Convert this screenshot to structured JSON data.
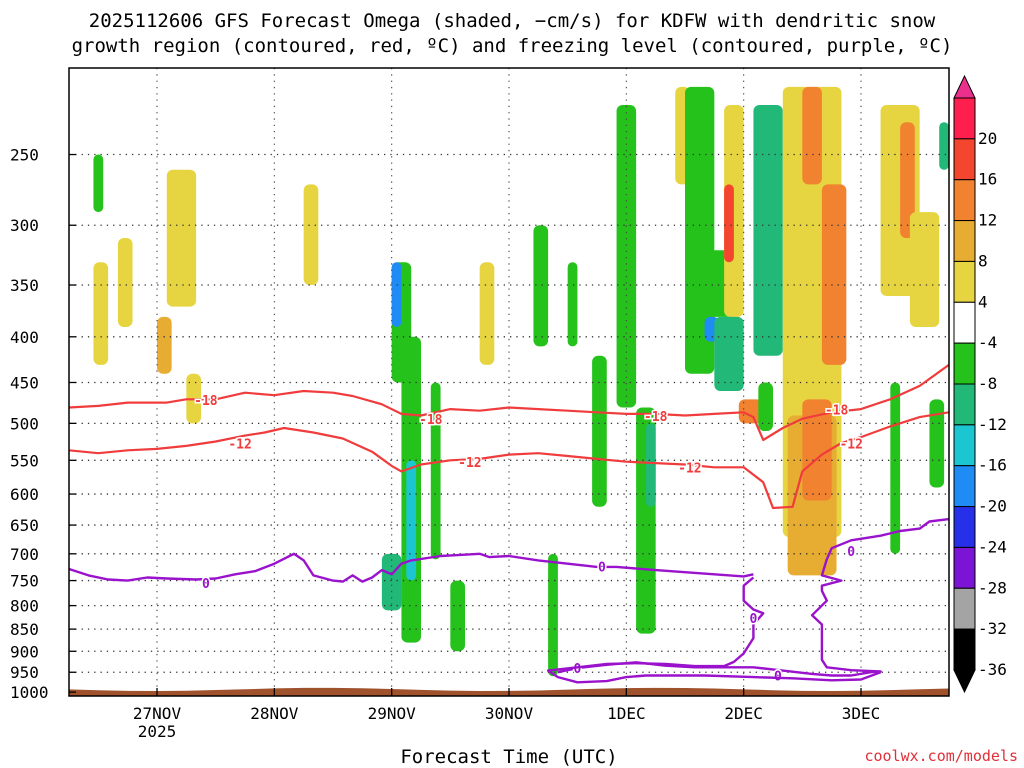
{
  "chart_data": {
    "type": "heatmap",
    "title_lines": [
      "2025112606 GFS Forecast Omega (shaded, −cm/s) for KDFW with dendritic snow",
      "growth region (contoured, red, ºC) and freezing level (contoured, purple, ºC)"
    ],
    "xlabel": "Forecast Time (UTC)",
    "ylabel": "",
    "x_ticks": [
      "27NOV",
      "28NOV",
      "29NOV",
      "30NOV",
      "1DEC",
      "2DEC",
      "3DEC"
    ],
    "x_tick_hours": [
      18,
      42,
      66,
      90,
      114,
      138,
      162
    ],
    "x_year_label": "2025",
    "xlim_hours": [
      0,
      180
    ],
    "y_ticks": [
      250,
      300,
      350,
      400,
      450,
      500,
      550,
      600,
      650,
      700,
      750,
      800,
      850,
      900,
      950,
      1000
    ],
    "ylim": [
      200,
      1010
    ],
    "grid": true,
    "colorbar": {
      "labels": [
        "20",
        "16",
        "12",
        "8",
        "4",
        "-4",
        "-8",
        "-12",
        "-16",
        "-20",
        "-24",
        "-28",
        "-32",
        "-36"
      ],
      "colors": [
        "#ff1f4e",
        "#f4462e",
        "#f08230",
        "#e7ad32",
        "#e6d540",
        "#ffffff",
        "#25c21c",
        "#21b878",
        "#1cc6d0",
        "#1f8cf6",
        "#2530e8",
        "#7b14d4",
        "#a4a4a4",
        "#000000"
      ],
      "top_arrow_color": "#ea2f8c",
      "bottom_arrow_color": "#000000"
    },
    "omega_patches": [
      {
        "h": 5,
        "p": 330,
        "w": 3,
        "dp": 100,
        "c": 4
      },
      {
        "h": 10,
        "p": 310,
        "w": 3,
        "dp": 80,
        "c": 4
      },
      {
        "h": 20,
        "p": 260,
        "w": 6,
        "dp": 110,
        "c": 4
      },
      {
        "h": 18,
        "p": 380,
        "w": 3,
        "dp": 60,
        "c": 3
      },
      {
        "h": 24,
        "p": 440,
        "w": 3,
        "dp": 60,
        "c": 4
      },
      {
        "h": 5,
        "p": 250,
        "w": 2,
        "dp": 40,
        "c": 6
      },
      {
        "h": 48,
        "p": 270,
        "w": 3,
        "dp": 80,
        "c": 4
      },
      {
        "h": 66,
        "p": 330,
        "w": 4,
        "dp": 120,
        "c": 6
      },
      {
        "h": 66,
        "p": 330,
        "w": 2,
        "dp": 60,
        "c": 9
      },
      {
        "h": 68,
        "p": 400,
        "w": 4,
        "dp": 480,
        "c": 6
      },
      {
        "h": 69,
        "p": 550,
        "w": 2,
        "dp": 200,
        "c": 8
      },
      {
        "h": 64,
        "p": 700,
        "w": 4,
        "dp": 110,
        "c": 7
      },
      {
        "h": 74,
        "p": 450,
        "w": 2,
        "dp": 260,
        "c": 6
      },
      {
        "h": 78,
        "p": 750,
        "w": 3,
        "dp": 150,
        "c": 6
      },
      {
        "h": 84,
        "p": 330,
        "w": 3,
        "dp": 100,
        "c": 4
      },
      {
        "h": 95,
        "p": 300,
        "w": 3,
        "dp": 110,
        "c": 6
      },
      {
        "h": 98,
        "p": 700,
        "w": 2,
        "dp": 260,
        "c": 6
      },
      {
        "h": 102,
        "p": 330,
        "w": 2,
        "dp": 80,
        "c": 6
      },
      {
        "h": 107,
        "p": 420,
        "w": 3,
        "dp": 200,
        "c": 6
      },
      {
        "h": 112,
        "p": 220,
        "w": 4,
        "dp": 260,
        "c": 6
      },
      {
        "h": 116,
        "p": 480,
        "w": 4,
        "dp": 380,
        "c": 6
      },
      {
        "h": 118,
        "p": 500,
        "w": 2,
        "dp": 120,
        "c": 7
      },
      {
        "h": 124,
        "p": 210,
        "w": 3,
        "dp": 60,
        "c": 4
      },
      {
        "h": 126,
        "p": 220,
        "w": 2,
        "dp": 60,
        "c": 8
      },
      {
        "h": 126,
        "p": 210,
        "w": 6,
        "dp": 230,
        "c": 6
      },
      {
        "h": 129,
        "p": 320,
        "w": 8,
        "dp": 60,
        "c": 6
      },
      {
        "h": 130,
        "p": 380,
        "w": 3,
        "dp": 25,
        "c": 9
      },
      {
        "h": 134,
        "p": 220,
        "w": 4,
        "dp": 160,
        "c": 4
      },
      {
        "h": 134,
        "p": 270,
        "w": 2,
        "dp": 60,
        "c": 1
      },
      {
        "h": 132,
        "p": 380,
        "w": 6,
        "dp": 80,
        "c": 7
      },
      {
        "h": 140,
        "p": 220,
        "w": 6,
        "dp": 200,
        "c": 7
      },
      {
        "h": 137,
        "p": 470,
        "w": 5,
        "dp": 30,
        "c": 2
      },
      {
        "h": 141,
        "p": 450,
        "w": 3,
        "dp": 60,
        "c": 6
      },
      {
        "h": 146,
        "p": 210,
        "w": 12,
        "dp": 460,
        "c": 4
      },
      {
        "h": 147,
        "p": 490,
        "w": 10,
        "dp": 250,
        "c": 3
      },
      {
        "h": 156,
        "p": 300,
        "w": 2,
        "dp": 120,
        "c": 0
      },
      {
        "h": 154,
        "p": 270,
        "w": 5,
        "dp": 160,
        "c": 2
      },
      {
        "h": 150,
        "p": 470,
        "w": 6,
        "dp": 140,
        "c": 2
      },
      {
        "h": 150,
        "p": 210,
        "w": 4,
        "dp": 60,
        "c": 2
      },
      {
        "h": 166,
        "p": 220,
        "w": 8,
        "dp": 140,
        "c": 4
      },
      {
        "h": 170,
        "p": 230,
        "w": 3,
        "dp": 80,
        "c": 2
      },
      {
        "h": 172,
        "p": 290,
        "w": 6,
        "dp": 100,
        "c": 4
      },
      {
        "h": 168,
        "p": 450,
        "w": 2,
        "dp": 250,
        "c": 6
      },
      {
        "h": 176,
        "p": 470,
        "w": 3,
        "dp": 120,
        "c": 6
      },
      {
        "h": 178,
        "p": 230,
        "w": 2,
        "dp": 30,
        "c": 7
      }
    ],
    "dgz_contours": [
      {
        "label": "-18",
        "label_positions": [
          [
            28,
            472
          ],
          [
            74,
            496
          ],
          [
            120,
            492
          ],
          [
            157,
            484
          ]
        ],
        "points": [
          [
            0,
            480
          ],
          [
            6,
            478
          ],
          [
            12,
            474
          ],
          [
            20,
            474
          ],
          [
            24,
            470
          ],
          [
            30,
            470
          ],
          [
            36,
            462
          ],
          [
            42,
            465
          ],
          [
            48,
            460
          ],
          [
            54,
            462
          ],
          [
            58,
            466
          ],
          [
            64,
            476
          ],
          [
            68,
            488
          ],
          [
            72,
            490
          ],
          [
            78,
            482
          ],
          [
            84,
            484
          ],
          [
            90,
            480
          ],
          [
            96,
            482
          ],
          [
            102,
            484
          ],
          [
            108,
            486
          ],
          [
            114,
            488
          ],
          [
            120,
            488
          ],
          [
            126,
            490
          ],
          [
            132,
            488
          ],
          [
            138,
            486
          ],
          [
            140,
            492
          ],
          [
            142,
            522
          ],
          [
            146,
            506
          ],
          [
            150,
            494
          ],
          [
            156,
            486
          ],
          [
            162,
            482
          ],
          [
            168,
            470
          ],
          [
            174,
            454
          ],
          [
            180,
            430
          ]
        ]
      },
      {
        "label": "-12",
        "label_positions": [
          [
            35,
            528
          ],
          [
            82,
            554
          ],
          [
            127,
            562
          ],
          [
            160,
            528
          ]
        ],
        "points": [
          [
            0,
            536
          ],
          [
            6,
            540
          ],
          [
            12,
            536
          ],
          [
            18,
            534
          ],
          [
            24,
            530
          ],
          [
            30,
            524
          ],
          [
            36,
            516
          ],
          [
            40,
            512
          ],
          [
            44,
            506
          ],
          [
            50,
            512
          ],
          [
            56,
            520
          ],
          [
            62,
            538
          ],
          [
            66,
            558
          ],
          [
            68,
            566
          ],
          [
            72,
            556
          ],
          [
            78,
            550
          ],
          [
            84,
            548
          ],
          [
            90,
            542
          ],
          [
            96,
            540
          ],
          [
            102,
            544
          ],
          [
            108,
            548
          ],
          [
            114,
            552
          ],
          [
            120,
            554
          ],
          [
            126,
            556
          ],
          [
            132,
            560
          ],
          [
            138,
            560
          ],
          [
            142,
            582
          ],
          [
            144,
            622
          ],
          [
            148,
            620
          ],
          [
            150,
            566
          ],
          [
            154,
            542
          ],
          [
            158,
            526
          ],
          [
            162,
            518
          ],
          [
            168,
            504
          ],
          [
            174,
            492
          ],
          [
            180,
            486
          ]
        ]
      }
    ],
    "freezing_contours": [
      {
        "label": "0",
        "label_positions": [
          [
            28,
            757
          ],
          [
            109,
            725
          ]
        ],
        "points": [
          [
            0,
            728
          ],
          [
            4,
            740
          ],
          [
            8,
            748
          ],
          [
            12,
            750
          ],
          [
            16,
            744
          ],
          [
            20,
            746
          ],
          [
            26,
            748
          ],
          [
            30,
            746
          ],
          [
            34,
            738
          ],
          [
            38,
            732
          ],
          [
            42,
            718
          ],
          [
            46,
            700
          ],
          [
            48,
            712
          ],
          [
            50,
            740
          ],
          [
            54,
            750
          ],
          [
            56,
            752
          ],
          [
            58,
            740
          ],
          [
            60,
            752
          ],
          [
            62,
            744
          ],
          [
            64,
            730
          ],
          [
            66,
            738
          ],
          [
            68,
            718
          ],
          [
            70,
            712
          ],
          [
            76,
            704
          ],
          [
            80,
            702
          ],
          [
            84,
            700
          ],
          [
            86,
            706
          ],
          [
            90,
            704
          ],
          [
            96,
            712
          ],
          [
            102,
            718
          ],
          [
            108,
            724
          ],
          [
            112,
            724
          ],
          [
            120,
            730
          ],
          [
            126,
            734
          ],
          [
            132,
            738
          ],
          [
            138,
            742
          ],
          [
            140,
            738
          ]
        ]
      },
      {
        "label": "0",
        "label_positions": [
          [
            104,
            942
          ],
          [
            145,
            960
          ],
          [
            160,
            697
          ]
        ],
        "points": [
          [
            100,
            950
          ],
          [
            104,
            940
          ],
          [
            110,
            932
          ],
          [
            116,
            926
          ],
          [
            122,
            934
          ],
          [
            128,
            938
          ],
          [
            134,
            938
          ],
          [
            140,
            938
          ],
          [
            146,
            946
          ],
          [
            152,
            954
          ],
          [
            156,
            958
          ],
          [
            160,
            958
          ],
          [
            164,
            950
          ],
          [
            166,
            948
          ],
          [
            160,
            945
          ],
          [
            155,
            938
          ],
          [
            154,
            920
          ],
          [
            154,
            880
          ],
          [
            154,
            840
          ],
          [
            152,
            820
          ],
          [
            155,
            790
          ],
          [
            154,
            770
          ],
          [
            154,
            760
          ],
          [
            158,
            750
          ],
          [
            154,
            740
          ],
          [
            155,
            710
          ],
          [
            156,
            690
          ],
          [
            160,
            676
          ],
          [
            166,
            668
          ],
          [
            170,
            660
          ],
          [
            174,
            656
          ],
          [
            176,
            644
          ],
          [
            180,
            640
          ]
        ]
      },
      {
        "label": "0",
        "label_positions": [
          [
            140,
            828
          ]
        ],
        "points": [
          [
            140,
            744
          ],
          [
            138,
            760
          ],
          [
            138,
            790
          ],
          [
            140,
            808
          ],
          [
            142,
            816
          ],
          [
            140,
            840
          ],
          [
            140,
            870
          ],
          [
            138,
            905
          ],
          [
            136,
            925
          ],
          [
            134,
            935
          ],
          [
            128,
            935
          ],
          [
            122,
            930
          ],
          [
            116,
            928
          ],
          [
            110,
            930
          ],
          [
            104,
            938
          ],
          [
            98,
            946
          ],
          [
            100,
            962
          ],
          [
            104,
            975
          ],
          [
            110,
            972
          ],
          [
            114,
            962
          ],
          [
            118,
            958
          ],
          [
            124,
            958
          ],
          [
            130,
            958
          ],
          [
            140,
            962
          ],
          [
            148,
            965
          ],
          [
            156,
            970
          ],
          [
            162,
            968
          ],
          [
            166,
            950
          ]
        ]
      }
    ],
    "ground": {
      "top_p": 993,
      "color": "#a0522d"
    },
    "credit": "coolwx.com/models"
  }
}
